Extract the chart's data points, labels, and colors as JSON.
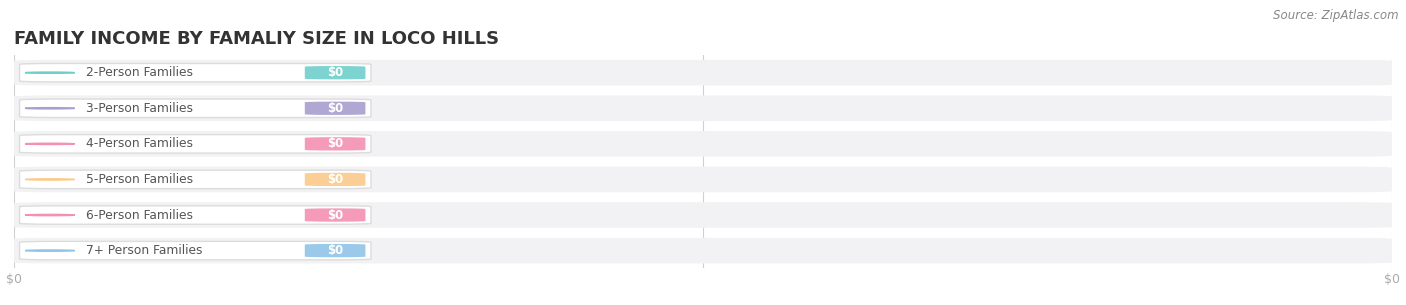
{
  "title": "FAMILY INCOME BY FAMALIY SIZE IN LOCO HILLS",
  "source_text": "Source: ZipAtlas.com",
  "categories": [
    "2-Person Families",
    "3-Person Families",
    "4-Person Families",
    "5-Person Families",
    "6-Person Families",
    "7+ Person Families"
  ],
  "values": [
    0,
    0,
    0,
    0,
    0,
    0
  ],
  "bar_colors": [
    "#6ecfca",
    "#a89fce",
    "#f490b2",
    "#fbc98a",
    "#f490b2",
    "#90c3e8"
  ],
  "background_color": "#ffffff",
  "bar_bg_color": "#f2f2f4",
  "title_fontsize": 13,
  "source_fontsize": 8.5,
  "xtick_labels": [
    "$0",
    "$0"
  ],
  "xtick_positions": [
    0.0,
    1.0
  ]
}
